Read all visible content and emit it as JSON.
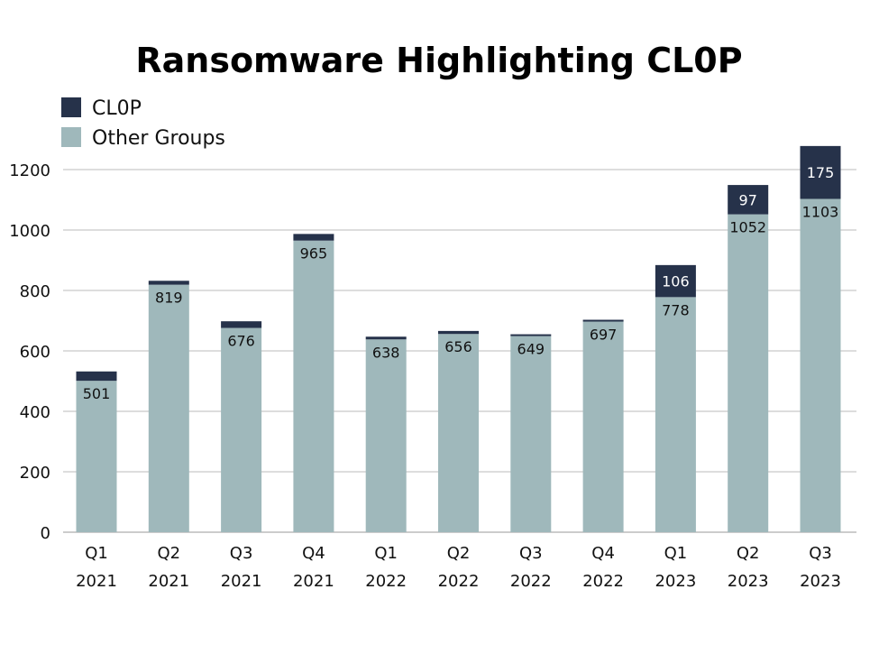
{
  "chart_data": {
    "type": "bar",
    "stacked": true,
    "title": "Ransomware Highlighting CL0P",
    "xlabel": "",
    "ylabel": "",
    "ylim": [
      0,
      1300
    ],
    "yticks": [
      0,
      200,
      400,
      600,
      800,
      1000,
      1200
    ],
    "grid": true,
    "legend_position": "top-left",
    "categories": [
      [
        "Q1",
        "2021"
      ],
      [
        "Q2",
        "2021"
      ],
      [
        "Q3",
        "2021"
      ],
      [
        "Q4",
        "2021"
      ],
      [
        "Q1",
        "2022"
      ],
      [
        "Q2",
        "2022"
      ],
      [
        "Q3",
        "2022"
      ],
      [
        "Q4",
        "2022"
      ],
      [
        "Q1",
        "2023"
      ],
      [
        "Q2",
        "2023"
      ],
      [
        "Q3",
        "2023"
      ]
    ],
    "series": [
      {
        "name": "Other Groups",
        "color": "#9fb8bb",
        "values": [
          501,
          819,
          676,
          965,
          638,
          656,
          649,
          697,
          778,
          1052,
          1103
        ],
        "labeled": [
          true,
          true,
          true,
          true,
          true,
          true,
          true,
          true,
          true,
          true,
          true
        ]
      },
      {
        "name": "CL0P",
        "color": "#26324a",
        "values": [
          31,
          13,
          22,
          22,
          9,
          10,
          6,
          6,
          106,
          97,
          175
        ],
        "labeled": [
          false,
          false,
          false,
          false,
          false,
          false,
          false,
          false,
          true,
          true,
          true
        ]
      }
    ]
  }
}
